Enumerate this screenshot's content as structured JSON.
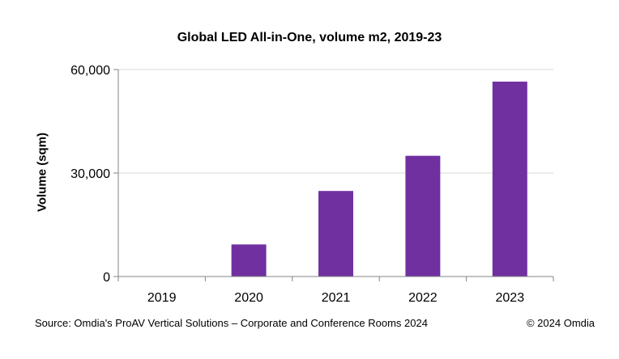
{
  "chart_data": {
    "type": "bar",
    "title": "Global LED All-in-One, volume m2, 2019-23",
    "xlabel": "",
    "ylabel": "Volume (sqm)",
    "categories": [
      "2019",
      "2020",
      "2021",
      "2022",
      "2023"
    ],
    "values": [
      0,
      9300,
      24800,
      35000,
      56500
    ],
    "ylim": [
      0,
      60000
    ],
    "yticks": [
      0,
      30000,
      60000
    ],
    "ytick_labels": [
      "0",
      "30,000",
      "60,000"
    ],
    "grid": true,
    "legend": "none",
    "bar_color": "#7030a0"
  },
  "footer": {
    "source": "Source: Omdia's ProAV Vertical Solutions – Corporate and Conference Rooms 2024",
    "copyright": "© 2024 Omdia"
  }
}
